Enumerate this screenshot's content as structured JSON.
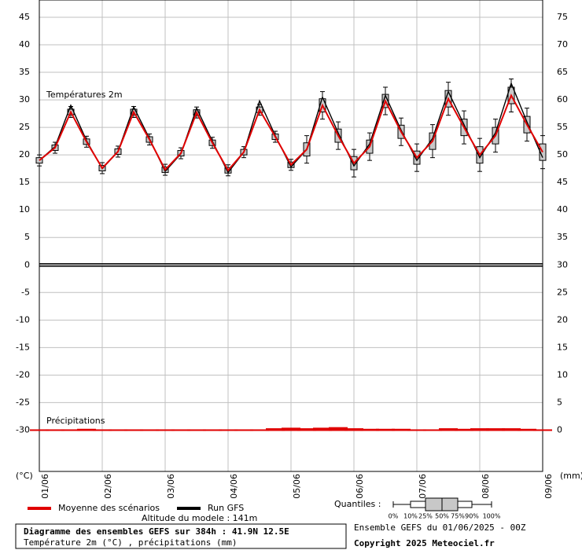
{
  "chart_data": {
    "type": "ensemble",
    "title": "Diagramme des ensembles GEFS sur 384h : 41.9N 12.5E",
    "subtitle": "Température 2m (°C) , précipitations (mm)",
    "run_label": "Ensemble GEFS du 01/06/2025 - 00Z",
    "copyright": "Copyright 2025 Meteociel.fr",
    "altitude": "Altitude du modele : 141m",
    "temperature_label": "Températures 2m",
    "precipitation_label": "Précipitations",
    "y_label": "(°C)",
    "y2_label": "(mm)",
    "x": [
      0,
      6,
      12,
      18,
      24,
      30,
      36,
      42,
      48,
      54,
      60,
      66,
      72,
      78,
      84,
      90,
      96,
      102,
      108,
      114,
      120,
      126,
      132,
      138,
      144,
      150,
      156,
      162,
      168,
      174,
      180,
      186,
      192
    ],
    "xlim": [
      0,
      192
    ],
    "xticks": [
      {
        "value": 0,
        "label": "01/06"
      },
      {
        "value": 24,
        "label": "02/06"
      },
      {
        "value": 48,
        "label": "03/06"
      },
      {
        "value": 72,
        "label": "04/06"
      },
      {
        "value": 96,
        "label": "05/06"
      },
      {
        "value": 120,
        "label": "06/06"
      },
      {
        "value": 144,
        "label": "07/06"
      },
      {
        "value": 168,
        "label": "08/06"
      },
      {
        "value": 192,
        "label": "09/06"
      }
    ],
    "ylim": [
      -37.5,
      45
    ],
    "yticks": [
      45,
      40,
      35,
      30,
      25,
      20,
      15,
      10,
      5,
      0,
      -5,
      -10,
      -15,
      -20,
      -25,
      -30
    ],
    "y2lim": [
      -7.5,
      75
    ],
    "y2ticks": [
      75,
      70,
      65,
      60,
      55,
      50,
      45,
      40,
      35,
      30,
      25,
      20,
      15,
      10,
      5,
      0
    ],
    "grid": true,
    "series": [
      {
        "name": "Moyenne des scénarios",
        "color": "#e00000",
        "values": [
          19,
          21.3,
          27.8,
          22.4,
          17.6,
          20.6,
          27.8,
          22.8,
          17.3,
          20.3,
          27.7,
          22.2,
          17.2,
          20.5,
          28.2,
          23.3,
          18.2,
          21,
          29,
          23.5,
          18.5,
          21.5,
          29.8,
          24.2,
          19.5,
          22.5,
          30.2,
          25,
          20,
          23.5,
          30.8,
          25.5,
          20.5
        ]
      },
      {
        "name": "Run GFS",
        "color": "#000000",
        "values": [
          19,
          21.5,
          29,
          22.6,
          17.5,
          20.6,
          28.7,
          23,
          17,
          20.2,
          28.5,
          22.5,
          16.8,
          20.5,
          29.8,
          23.5,
          17.8,
          21,
          30.5,
          24,
          18,
          22,
          30.8,
          24.5,
          19,
          23,
          31.5,
          25.5,
          19.5,
          24,
          33,
          26,
          19.5
        ]
      },
      {
        "color": "#e00000",
        "axis": "y2",
        "values": [
          0,
          0,
          0,
          0.1,
          0,
          0,
          0,
          0,
          0,
          0,
          0,
          0,
          0,
          0,
          0,
          0.2,
          0.3,
          0.2,
          0.3,
          0.4,
          0.2,
          0.1,
          0.1,
          0.1,
          0,
          0,
          0.2,
          0.1,
          0.2,
          0.2,
          0.2,
          0.1,
          0
        ]
      }
    ],
    "boxes": {
      "color": "#c8c8c8",
      "p10": [
        18,
        20.3,
        26.8,
        21.4,
        16.6,
        19.6,
        26.8,
        21.8,
        16.3,
        19.3,
        26.7,
        21.2,
        16.2,
        19.5,
        27.2,
        22.3,
        17.2,
        18.5,
        26.5,
        21,
        16,
        19,
        27.3,
        21.7,
        17,
        19.5,
        27.2,
        22,
        17,
        20.5,
        27.8,
        22.5,
        17.5
      ],
      "p25": [
        18.5,
        20.8,
        27.3,
        21.9,
        17.1,
        20.1,
        27.3,
        22.3,
        16.8,
        19.8,
        27.2,
        21.7,
        16.7,
        20,
        27.7,
        22.8,
        17.7,
        19.8,
        27.8,
        22.3,
        17.3,
        20.3,
        28.6,
        23,
        18.3,
        21,
        28.7,
        23.5,
        18.5,
        22,
        29.3,
        24,
        19
      ],
      "p75": [
        19.5,
        21.8,
        28.3,
        22.9,
        18.1,
        21.1,
        28.3,
        23.3,
        17.8,
        20.8,
        28.2,
        22.7,
        17.7,
        21,
        28.7,
        23.8,
        18.7,
        22.2,
        30.2,
        24.7,
        19.7,
        22.7,
        31,
        25.4,
        20.7,
        24,
        31.7,
        26.5,
        21.5,
        25,
        32.3,
        27,
        22
      ],
      "p90": [
        20,
        22.3,
        28.8,
        23.4,
        18.6,
        21.6,
        28.8,
        23.8,
        18.3,
        21.3,
        28.7,
        23.2,
        18.2,
        21.5,
        29.2,
        24.3,
        19.2,
        23.5,
        31.5,
        26,
        21,
        24,
        32.3,
        26.7,
        22,
        25.5,
        33.2,
        28,
        23,
        26.5,
        33.8,
        28.5,
        23.5
      ]
    },
    "quantile_legend": {
      "title": "Quantiles :",
      "labels": [
        "0%",
        "10%",
        "25%",
        "50%",
        "75%",
        "90%",
        "100%"
      ]
    }
  }
}
